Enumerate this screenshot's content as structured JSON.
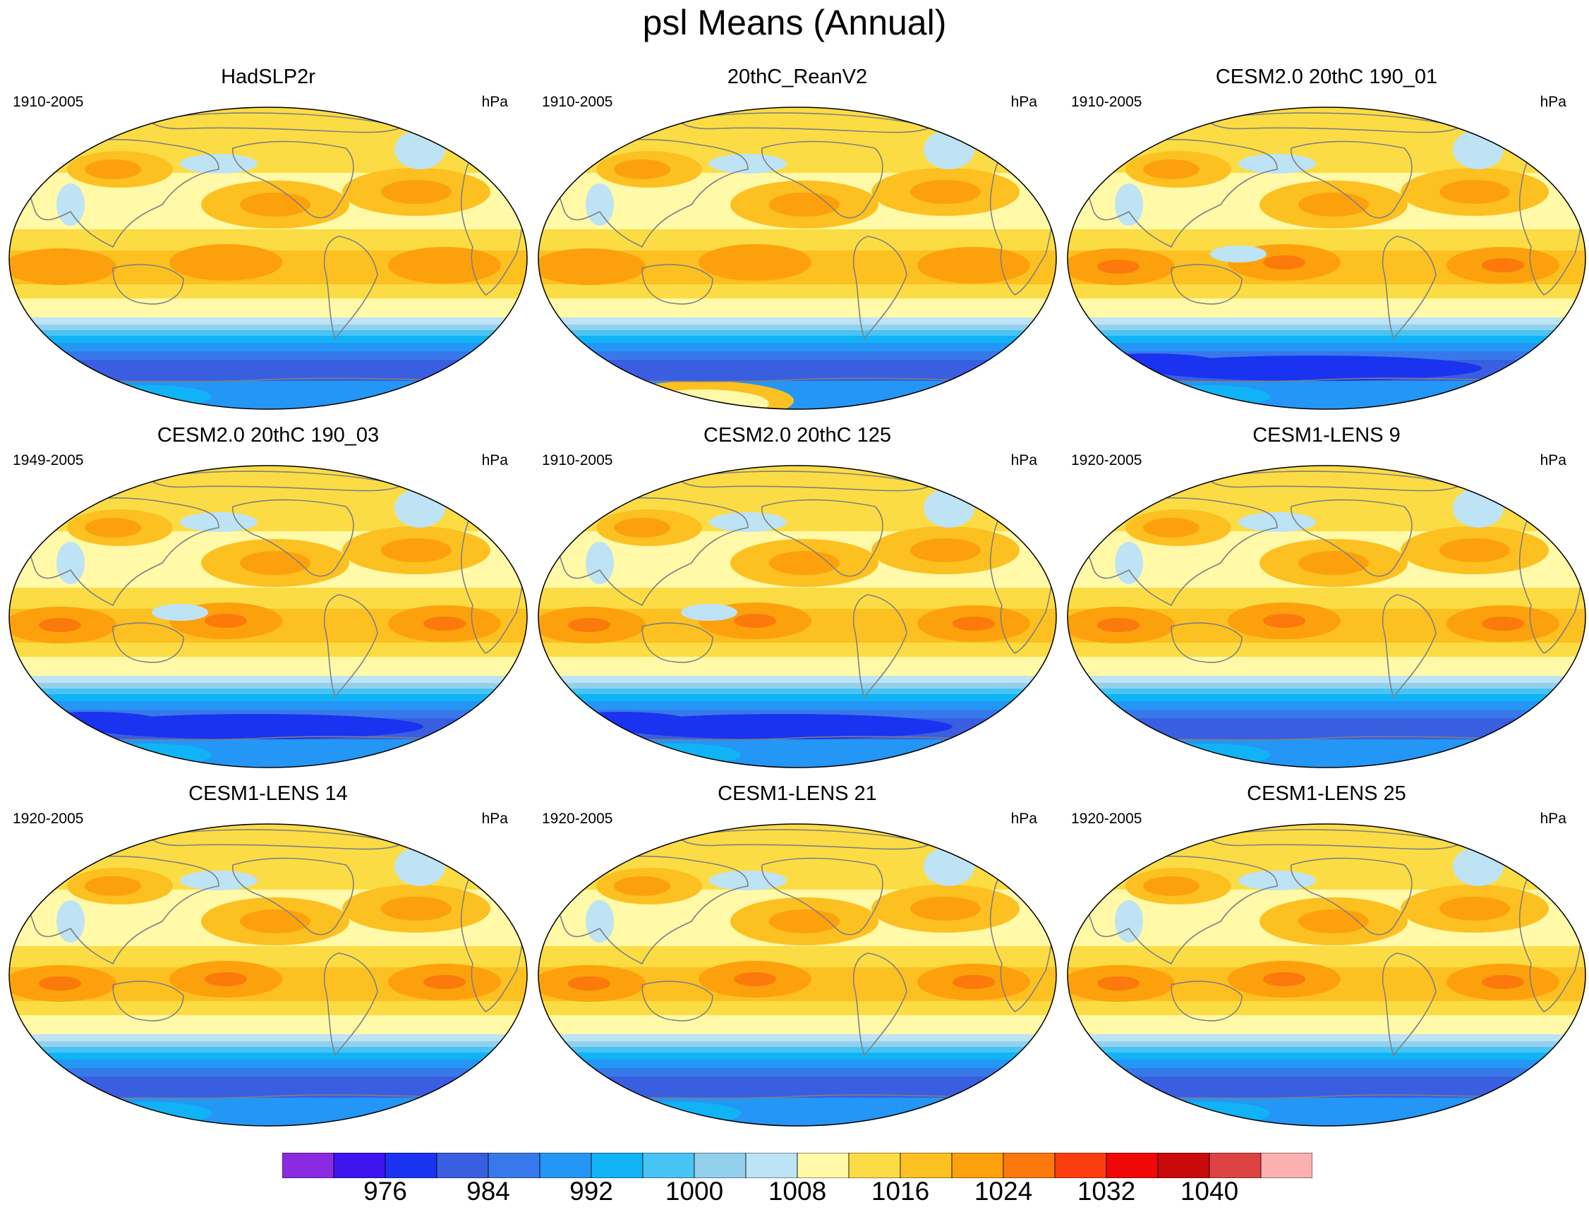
{
  "title": "psl Means (Annual)",
  "panels": [
    {
      "title": "HadSLP2r",
      "years": "1910-2005",
      "units": "hPa",
      "variant": "obs"
    },
    {
      "title": "20thC_ReanV2",
      "years": "1910-2005",
      "units": "hPa",
      "variant": "rean"
    },
    {
      "title": "CESM2.0 20thC 190_01",
      "years": "1910-2005",
      "units": "hPa",
      "variant": "cesm2"
    },
    {
      "title": "CESM2.0 20thC 190_03",
      "years": "1949-2005",
      "units": "hPa",
      "variant": "cesm2"
    },
    {
      "title": "CESM2.0 20thC 125",
      "years": "1910-2005",
      "units": "hPa",
      "variant": "cesm2"
    },
    {
      "title": "CESM1-LENS 9",
      "years": "1920-2005",
      "units": "hPa",
      "variant": "lens"
    },
    {
      "title": "CESM1-LENS 14",
      "years": "1920-2005",
      "units": "hPa",
      "variant": "lens"
    },
    {
      "title": "CESM1-LENS 21",
      "years": "1920-2005",
      "units": "hPa",
      "variant": "lens"
    },
    {
      "title": "CESM1-LENS 25",
      "years": "1920-2005",
      "units": "hPa",
      "variant": "lens"
    }
  ],
  "colorbar": {
    "colors": [
      "#8a2be2",
      "#3d14ee",
      "#1a33f0",
      "#3a5ee0",
      "#3779ea",
      "#2496f5",
      "#10b4f6",
      "#48c4f4",
      "#93d0ee",
      "#bde3f5",
      "#fff9a8",
      "#fcdc44",
      "#fcc021",
      "#fca10b",
      "#fc790c",
      "#fc3e0e",
      "#f20707",
      "#c80a0a",
      "#de4343",
      "#fdb0b0"
    ],
    "labels": [
      "976",
      "984",
      "992",
      "1000",
      "1008",
      "1016",
      "1024",
      "1032",
      "1040"
    ],
    "label_positions": [
      2,
      4,
      6,
      8,
      10,
      12,
      14,
      16,
      18
    ]
  }
}
